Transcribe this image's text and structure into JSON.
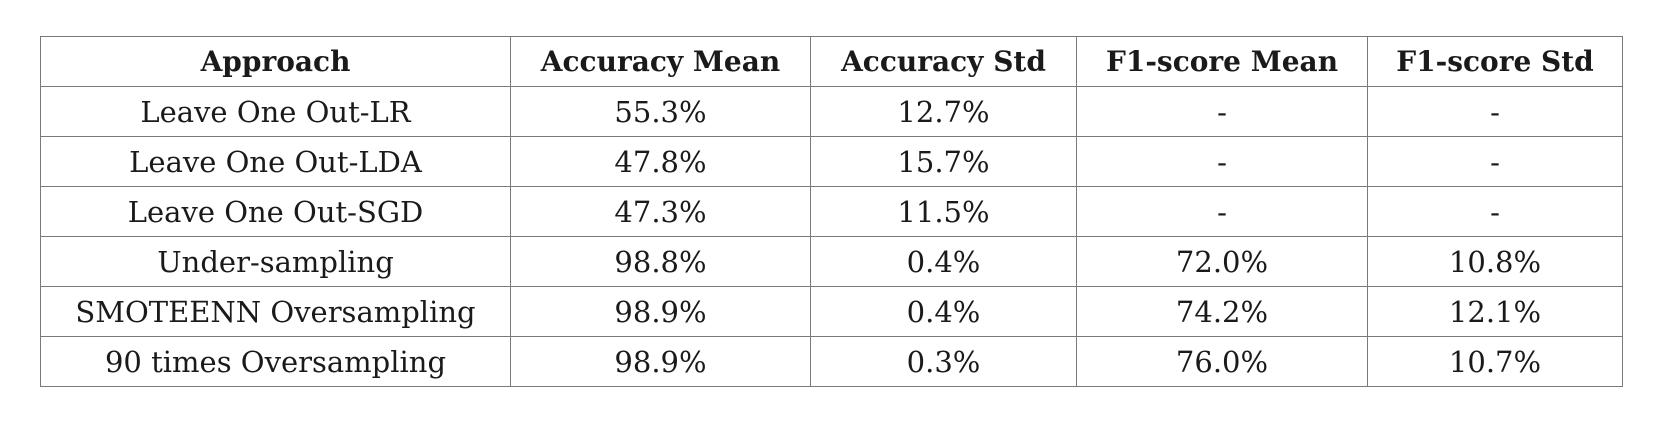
{
  "table": {
    "headers": [
      "Approach",
      "Accuracy Mean",
      "Accuracy Std",
      "F1-score Mean",
      "F1-score Std"
    ],
    "rows": [
      [
        "Leave One Out-LR",
        "55.3%",
        "12.7%",
        "-",
        "-"
      ],
      [
        "Leave One Out-LDA",
        "47.8%",
        "15.7%",
        "-",
        "-"
      ],
      [
        "Leave One Out-SGD",
        "47.3%",
        "11.5%",
        "-",
        "-"
      ],
      [
        "Under-sampling",
        "98.8%",
        "0.4%",
        "72.0%",
        "10.8%"
      ],
      [
        "SMOTEENN Oversampling",
        "98.9%",
        "0.4%",
        "74.2%",
        "12.1%"
      ],
      [
        "90 times Oversampling",
        "98.9%",
        "0.3%",
        "76.0%",
        "10.7%"
      ]
    ]
  }
}
